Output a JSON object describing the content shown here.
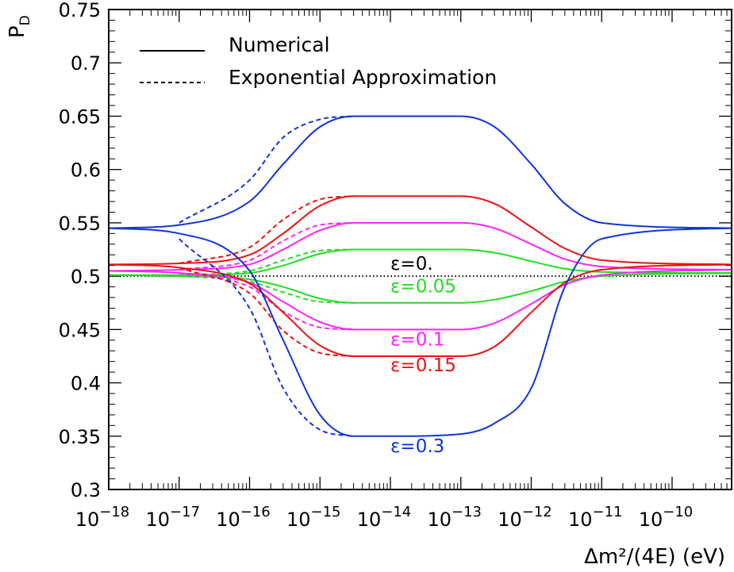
{
  "chart_data": {
    "type": "line",
    "x_scale": "log",
    "xlim": [
      "1e-18",
      "7e-10"
    ],
    "ylim": [
      0.3,
      0.75
    ],
    "xlabel": "Δm²/(4E) (eV)",
    "ylabel_main": "P",
    "ylabel_sub": "D",
    "x_tick_labels": [
      {
        "base": "10",
        "exp": "−18"
      },
      {
        "base": "10",
        "exp": "−17"
      },
      {
        "base": "10",
        "exp": "−16"
      },
      {
        "base": "10",
        "exp": "−15"
      },
      {
        "base": "10",
        "exp": "−14"
      },
      {
        "base": "10",
        "exp": "−13"
      },
      {
        "base": "10",
        "exp": "−12"
      },
      {
        "base": "10",
        "exp": "−11"
      },
      {
        "base": "10",
        "exp": "−10"
      }
    ],
    "y_ticks": [
      "0.3",
      "0.35",
      "0.4",
      "0.45",
      "0.5",
      "0.55",
      "0.6",
      "0.65",
      "0.7",
      "0.75"
    ],
    "legend": [
      {
        "label": "Numerical",
        "style": "solid"
      },
      {
        "label": "Exponential Approximation",
        "style": "dashed"
      }
    ],
    "limit_low_x": "1e-18",
    "limit_high_x": "7e-10",
    "series": [
      {
        "label": "ε=0.",
        "color": "#000000",
        "epsilon": 0,
        "numerical_upper": [
          [
            "1e-18",
            0.5
          ],
          [
            "7e-10",
            0.5
          ]
        ]
      },
      {
        "label": "ε=0.05",
        "color": "#22dd22",
        "epsilon": 0.05,
        "low_limit_value": 0.501,
        "high_limit_value": 0.503,
        "numerical_upper": [
          [
            "1e-18",
            0.501
          ],
          [
            "1e-17",
            0.501
          ],
          [
            "1e-16",
            0.503
          ],
          [
            "3e-16",
            0.51
          ],
          [
            "1e-15",
            0.521
          ],
          [
            "3e-15",
            0.525
          ],
          [
            "1e-14",
            0.525
          ],
          [
            "1e-13",
            0.525
          ],
          [
            "3e-13",
            0.522
          ],
          [
            "1e-12",
            0.514
          ],
          [
            "3e-12",
            0.507
          ],
          [
            "1e-11",
            0.504
          ],
          [
            "7e-10",
            0.503
          ]
        ],
        "numerical_lower": [
          [
            "1e-18",
            0.501
          ],
          [
            "1e-17",
            0.5
          ],
          [
            "1e-16",
            0.497
          ],
          [
            "3e-16",
            0.49
          ],
          [
            "1e-15",
            0.479
          ],
          [
            "3e-15",
            0.475
          ],
          [
            "1e-14",
            0.475
          ],
          [
            "1e-13",
            0.475
          ],
          [
            "3e-13",
            0.478
          ],
          [
            "1e-12",
            0.486
          ],
          [
            "3e-12",
            0.495
          ],
          [
            "1e-11",
            0.5
          ],
          [
            "7e-10",
            0.503
          ]
        ],
        "approx_upper": [
          [
            "1e-17",
            0.501
          ],
          [
            "1e-16",
            0.505
          ],
          [
            "3e-16",
            0.515
          ],
          [
            "1e-15",
            0.524
          ],
          [
            "3e-15",
            0.525
          ]
        ],
        "approx_lower": [
          [
            "1e-17",
            0.5
          ],
          [
            "1e-16",
            0.495
          ],
          [
            "3e-16",
            0.485
          ],
          [
            "1e-15",
            0.476
          ],
          [
            "3e-15",
            0.475
          ]
        ]
      },
      {
        "label": "ε=0.1",
        "color": "#ff22ff",
        "epsilon": 0.1,
        "low_limit_value": 0.505,
        "high_limit_value": 0.506,
        "numerical_upper": [
          [
            "1e-18",
            0.505
          ],
          [
            "1e-17",
            0.506
          ],
          [
            "1e-16",
            0.511
          ],
          [
            "3e-16",
            0.525
          ],
          [
            "1e-15",
            0.543
          ],
          [
            "3e-15",
            0.55
          ],
          [
            "1e-14",
            0.55
          ],
          [
            "1e-13",
            0.55
          ],
          [
            "3e-13",
            0.545
          ],
          [
            "1e-12",
            0.53
          ],
          [
            "3e-12",
            0.516
          ],
          [
            "1e-11",
            0.509
          ],
          [
            "7e-10",
            0.506
          ]
        ],
        "numerical_lower": [
          [
            "1e-18",
            0.505
          ],
          [
            "1e-17",
            0.503
          ],
          [
            "1e-16",
            0.494
          ],
          [
            "3e-16",
            0.476
          ],
          [
            "1e-15",
            0.457
          ],
          [
            "3e-15",
            0.45
          ],
          [
            "1e-14",
            0.45
          ],
          [
            "1e-13",
            0.45
          ],
          [
            "3e-13",
            0.456
          ],
          [
            "1e-12",
            0.474
          ],
          [
            "3e-12",
            0.492
          ],
          [
            "1e-11",
            0.501
          ],
          [
            "7e-10",
            0.506
          ]
        ],
        "approx_upper": [
          [
            "1e-17",
            0.506
          ],
          [
            "1e-16",
            0.515
          ],
          [
            "3e-16",
            0.533
          ],
          [
            "1e-15",
            0.548
          ],
          [
            "3e-15",
            0.55
          ]
        ],
        "approx_lower": [
          [
            "1e-17",
            0.503
          ],
          [
            "1e-16",
            0.49
          ],
          [
            "3e-16",
            0.467
          ],
          [
            "1e-15",
            0.452
          ],
          [
            "3e-15",
            0.45
          ]
        ]
      },
      {
        "label": "ε=0.15",
        "color": "#ee1111",
        "epsilon": 0.15,
        "low_limit_value": 0.511,
        "high_limit_value": 0.511,
        "numerical_upper": [
          [
            "1e-18",
            0.511
          ],
          [
            "1e-17",
            0.512
          ],
          [
            "1e-16",
            0.52
          ],
          [
            "3e-16",
            0.54
          ],
          [
            "1e-15",
            0.566
          ],
          [
            "3e-15",
            0.575
          ],
          [
            "1e-14",
            0.575
          ],
          [
            "1e-13",
            0.575
          ],
          [
            "3e-13",
            0.568
          ],
          [
            "1e-12",
            0.546
          ],
          [
            "3e-12",
            0.526
          ],
          [
            "1e-11",
            0.515
          ],
          [
            "7e-10",
            0.511
          ]
        ],
        "numerical_lower": [
          [
            "1e-18",
            0.511
          ],
          [
            "1e-17",
            0.508
          ],
          [
            "1e-16",
            0.493
          ],
          [
            "3e-16",
            0.466
          ],
          [
            "1e-15",
            0.435
          ],
          [
            "3e-15",
            0.425
          ],
          [
            "1e-14",
            0.425
          ],
          [
            "1e-13",
            0.425
          ],
          [
            "3e-13",
            0.434
          ],
          [
            "1e-12",
            0.466
          ],
          [
            "3e-12",
            0.494
          ],
          [
            "1e-11",
            0.506
          ],
          [
            "7e-10",
            0.511
          ]
        ],
        "approx_upper": [
          [
            "1e-17",
            0.512
          ],
          [
            "1e-16",
            0.527
          ],
          [
            "3e-16",
            0.553
          ],
          [
            "1e-15",
            0.572
          ],
          [
            "3e-15",
            0.575
          ]
        ],
        "approx_lower": [
          [
            "1e-17",
            0.508
          ],
          [
            "1e-16",
            0.484
          ],
          [
            "3e-16",
            0.449
          ],
          [
            "1e-15",
            0.428
          ],
          [
            "3e-15",
            0.425
          ]
        ]
      },
      {
        "label": "ε=0.3",
        "color": "#1133dd",
        "epsilon": 0.3,
        "low_limit_value": 0.545,
        "high_limit_value": 0.545,
        "numerical_upper": [
          [
            "1e-18",
            0.545
          ],
          [
            "1e-17",
            0.548
          ],
          [
            "1e-16",
            0.57
          ],
          [
            "3e-16",
            0.605
          ],
          [
            "1e-15",
            0.64
          ],
          [
            "3e-15",
            0.65
          ],
          [
            "1e-14",
            0.65
          ],
          [
            "1e-13",
            0.65
          ],
          [
            "3e-13",
            0.64
          ],
          [
            "1e-12",
            0.605
          ],
          [
            "3e-12",
            0.568
          ],
          [
            "1e-11",
            0.55
          ],
          [
            "7e-10",
            0.545
          ]
        ],
        "numerical_lower": [
          [
            "1e-18",
            0.545
          ],
          [
            "1e-17",
            0.54
          ],
          [
            "1e-16",
            0.505
          ],
          [
            "3e-16",
            0.44
          ],
          [
            "1e-15",
            0.37
          ],
          [
            "3e-15",
            0.35
          ],
          [
            "1e-14",
            0.35
          ],
          [
            "1e-13",
            0.352
          ],
          [
            "3e-13",
            0.362
          ],
          [
            "1e-12",
            0.395
          ],
          [
            "3e-12",
            0.49
          ],
          [
            "1e-11",
            0.535
          ],
          [
            "7e-10",
            0.545
          ]
        ],
        "approx_upper": [
          [
            "1e-17",
            0.55
          ],
          [
            "1e-16",
            0.59
          ],
          [
            "3e-16",
            0.63
          ],
          [
            "1e-15",
            0.647
          ],
          [
            "3e-15",
            0.65
          ]
        ],
        "approx_lower": [
          [
            "1e-17",
            0.535
          ],
          [
            "1e-16",
            0.47
          ],
          [
            "3e-16",
            0.395
          ],
          [
            "1e-15",
            0.356
          ],
          [
            "3e-15",
            0.35
          ]
        ]
      }
    ],
    "series_label_positions": [
      {
        "label": "ε=0.",
        "x": "1e-14",
        "y": 0.506
      },
      {
        "label": "ε=0.05",
        "x": "1e-14",
        "y": 0.485
      },
      {
        "label": "ε=0.1",
        "x": "1e-14",
        "y": 0.435
      },
      {
        "label": "ε=0.15",
        "x": "1e-14",
        "y": 0.411
      },
      {
        "label": "ε=0.3",
        "x": "1e-14",
        "y": 0.335
      }
    ],
    "grid": false
  }
}
